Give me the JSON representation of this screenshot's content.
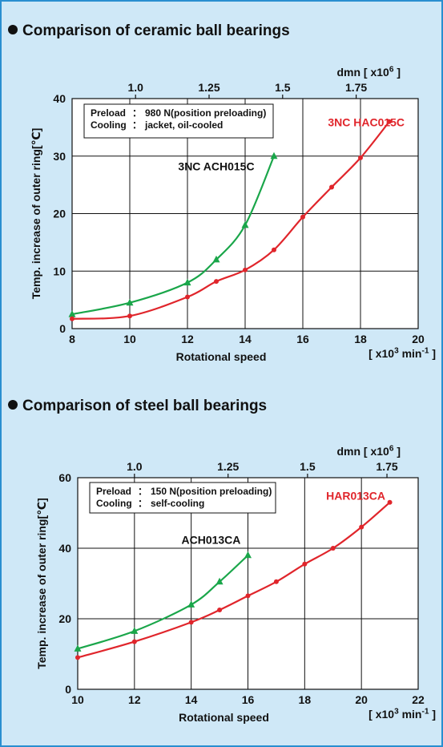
{
  "colors": {
    "green": "#1aa64a",
    "red": "#e0252b",
    "panel_bg": "#cfe8f7",
    "panel_border": "#2a8fd0"
  },
  "chart_data": [
    {
      "type": "scatter",
      "title": "Comparison of ceramic ball bearings",
      "xlabel": "Rotational speed",
      "xunit_parts": [
        "[ x10",
        "3",
        " min",
        "-1",
        " ]"
      ],
      "ylabel": "Temp. increase of outer ring[℃]",
      "xlim": [
        8,
        20
      ],
      "ylim": [
        0,
        40
      ],
      "xticks": [
        "8",
        "10",
        "12",
        "14",
        "16",
        "18",
        "20"
      ],
      "yticks": [
        "0",
        "10",
        "20",
        "30",
        "40"
      ],
      "top_axis": {
        "label_parts": [
          "dmn [ x10",
          "6",
          " ]"
        ],
        "ticks": [
          {
            "label": "1.0",
            "x": 10.2
          },
          {
            "label": "1.25",
            "x": 12.75
          },
          {
            "label": "1.5",
            "x": 15.3
          },
          {
            "label": "1.75",
            "x": 17.85
          }
        ]
      },
      "legend": [
        {
          "key": "Preload",
          "sep": "：",
          "value": "980 N(position preloading)"
        },
        {
          "key": "Cooling",
          "sep": "：",
          "value": "jacket, oil-cooled"
        }
      ],
      "series": [
        {
          "name": "3NC ACH015C",
          "color": "green",
          "marker": "triangle",
          "x": [
            8,
            10,
            12,
            13,
            14,
            15
          ],
          "y": [
            2.5,
            4.5,
            8,
            12,
            18,
            30
          ],
          "label_at": [
            13,
            27.5
          ]
        },
        {
          "name": "3NC HAC015C",
          "color": "red",
          "marker": "circle",
          "x": [
            8,
            10,
            12,
            13,
            14,
            15,
            16,
            17,
            18,
            19
          ],
          "y": [
            1.7,
            2.2,
            5.5,
            8.2,
            10.2,
            13.7,
            19.4,
            24.6,
            29.7,
            36
          ],
          "label_at": [
            18.2,
            35.2
          ]
        }
      ]
    },
    {
      "type": "scatter",
      "title": "Comparison of steel ball bearings",
      "xlabel": "Rotational speed",
      "xunit_parts": [
        "[ x10",
        "3",
        " min",
        "-1",
        " ]"
      ],
      "ylabel": "Temp. increase of outer ring[℃]",
      "xlim": [
        10,
        22
      ],
      "ylim": [
        0,
        60
      ],
      "xticks": [
        "10",
        "12",
        "14",
        "16",
        "18",
        "20",
        "22"
      ],
      "yticks": [
        "0",
        "20",
        "40",
        "60"
      ],
      "top_axis": {
        "label_parts": [
          "dmn [ x10",
          "6",
          " ]"
        ],
        "ticks": [
          {
            "label": "1.0",
            "x": 12.0
          },
          {
            "label": "1.25",
            "x": 15.3
          },
          {
            "label": "1.5",
            "x": 18.1
          },
          {
            "label": "1.75",
            "x": 20.9
          }
        ]
      },
      "legend": [
        {
          "key": "Preload",
          "sep": "：",
          "value": "150 N(position preloading)"
        },
        {
          "key": "Cooling",
          "sep": "：",
          "value": "self-cooling"
        }
      ],
      "series": [
        {
          "name": "ACH013CA",
          "color": "green",
          "marker": "triangle",
          "x": [
            10,
            12,
            14,
            15,
            16
          ],
          "y": [
            11.5,
            16.5,
            24,
            30.5,
            38
          ],
          "label_at": [
            14.7,
            41.3
          ]
        },
        {
          "name": "HAR013CA",
          "color": "red",
          "marker": "circle",
          "x": [
            10,
            12,
            14,
            15,
            16,
            17,
            18,
            19,
            20,
            21
          ],
          "y": [
            9,
            13.5,
            19,
            22.5,
            26.5,
            30.5,
            35.5,
            40,
            46,
            53
          ],
          "label_at": [
            19.8,
            53.7
          ]
        }
      ]
    }
  ]
}
